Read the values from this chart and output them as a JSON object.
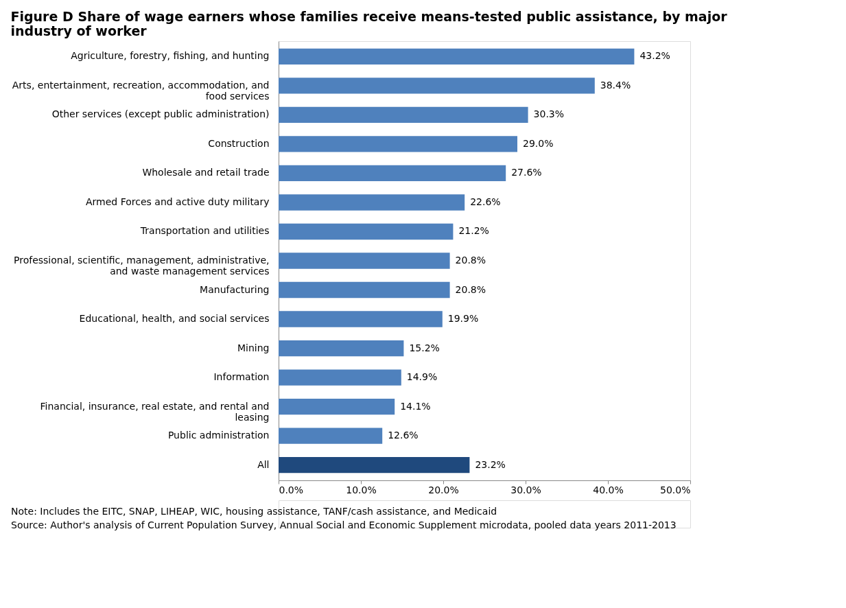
{
  "chart_data": {
    "type": "bar",
    "orientation": "horizontal",
    "title": "Figure D Share of wage earners whose families receive means-tested public assistance, by major industry of worker",
    "categories": [
      "Agriculture, forestry, fishing, and  hunting",
      "Arts, entertainment, recreation, accommodation, and food services",
      "Other services (except public administration)",
      "Construction",
      "Wholesale and retail trade",
      "Armed Forces and active duty military",
      "Transportation and utilities",
      "Professional, scientific, management, administrative, and waste management services",
      "Manufacturing",
      "Educational, health, and social services",
      "Mining",
      "Information",
      "Financial, insurance, real estate, and rental and leasing",
      "Public administration",
      "All"
    ],
    "values": [
      43.2,
      38.4,
      30.3,
      29.0,
      27.6,
      22.6,
      21.2,
      20.8,
      20.8,
      19.9,
      15.2,
      14.9,
      14.1,
      12.6,
      23.2
    ],
    "value_labels": [
      "43.2%",
      "38.4%",
      "30.3%",
      "29.0%",
      "27.6%",
      "22.6%",
      "21.2%",
      "20.8%",
      "20.8%",
      "19.9%",
      "15.2%",
      "14.9%",
      "14.1%",
      "12.6%",
      "23.2%"
    ],
    "colors": [
      "#4f81bd",
      "#4f81bd",
      "#4f81bd",
      "#4f81bd",
      "#4f81bd",
      "#4f81bd",
      "#4f81bd",
      "#4f81bd",
      "#4f81bd",
      "#4f81bd",
      "#4f81bd",
      "#4f81bd",
      "#4f81bd",
      "#4f81bd",
      "#1f497d"
    ],
    "xlim": [
      0,
      50
    ],
    "xticks": [
      {
        "value": 0,
        "label": "0.0%"
      },
      {
        "value": 10,
        "label": "10.0%"
      },
      {
        "value": 20,
        "label": "20.0%"
      },
      {
        "value": 30,
        "label": "30.0%"
      },
      {
        "value": 40,
        "label": "40.0%"
      },
      {
        "value": 50,
        "label": "50.0%"
      }
    ],
    "grid": false,
    "annotations": [
      "Note: Includes the EITC, SNAP, LIHEAP, WIC, housing assistance, TANF/cash assistance, and Medicaid",
      "Source: Author's analysis of Current Population Survey, Annual Social and Economic Supplement microdata, pooled data years 2011-2013"
    ]
  }
}
